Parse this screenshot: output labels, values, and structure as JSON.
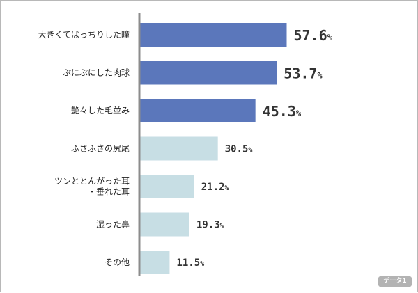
{
  "chart_data": {
    "type": "bar",
    "orientation": "horizontal",
    "categories": [
      [
        "大きくてぱっちりした瞳"
      ],
      [
        "ぷにぷにした肉球"
      ],
      [
        "艶々した毛並み"
      ],
      [
        "ふさふさの尻尾"
      ],
      [
        "ツンととんがった耳",
        "・垂れた耳"
      ],
      [
        "湿った鼻"
      ],
      [
        "その他"
      ]
    ],
    "values": [
      57.6,
      53.7,
      45.3,
      30.5,
      21.2,
      19.3,
      11.5
    ],
    "value_unit": "%",
    "highlight_top": 3,
    "colors": {
      "highlight": "#5b77bb",
      "normal": "#c7dee4",
      "axis": "#8c8c8c"
    },
    "xlim": [
      0,
      100
    ],
    "grid": false
  },
  "badge": "データ1"
}
